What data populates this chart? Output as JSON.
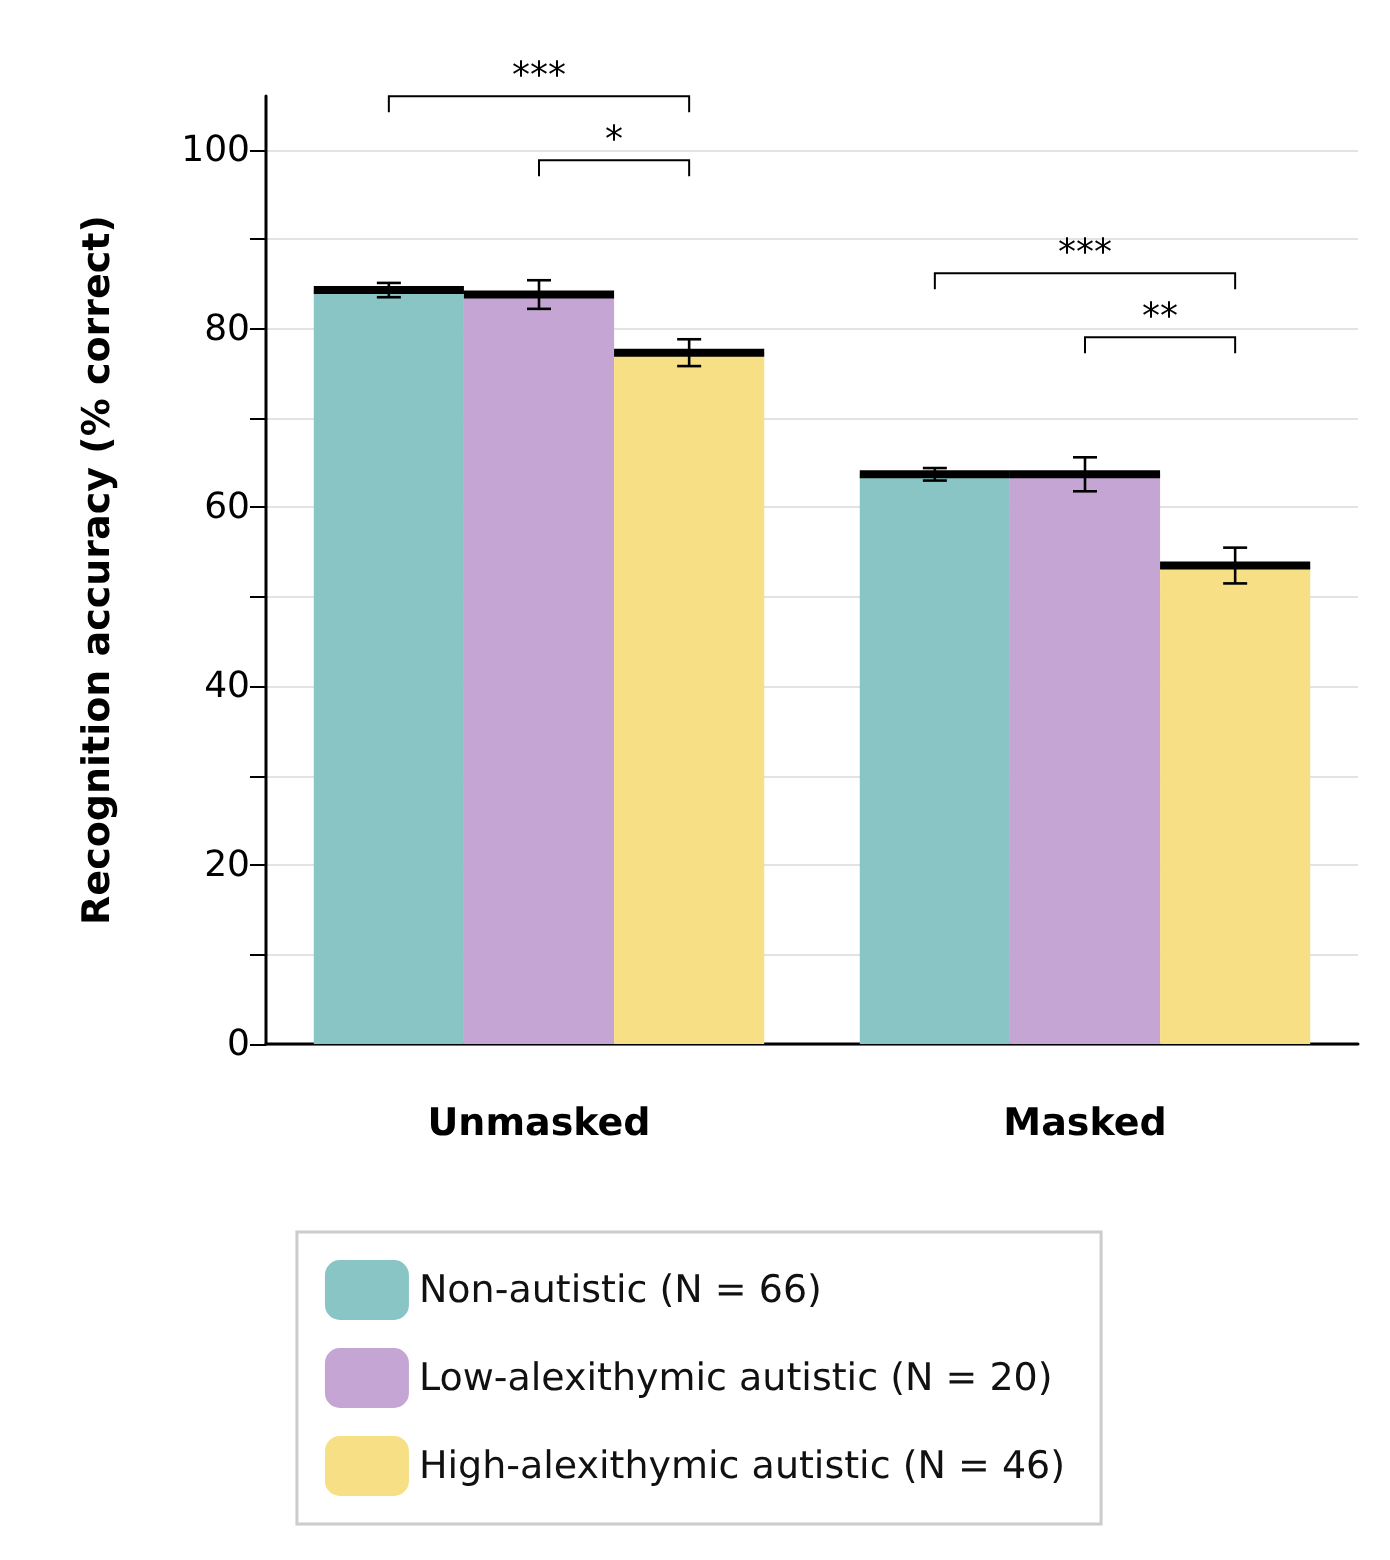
{
  "chart_data": {
    "type": "bar",
    "ylabel": "Recognition accuracy (% correct)",
    "categories": [
      "Unmasked",
      "Masked"
    ],
    "series": [
      {
        "name": "Non-autistic (N = 66)",
        "color": "#88c5c4",
        "values": [
          84.3,
          63.7
        ],
        "errors": [
          0.8,
          0.7
        ]
      },
      {
        "name": "Low-alexithymic autistic (N = 20)",
        "color": "#c4a5d4",
        "values": [
          83.8,
          63.7
        ],
        "errors": [
          1.6,
          1.9
        ]
      },
      {
        "name": "High-alexithymic autistic (N = 46)",
        "color": "#f7df86",
        "values": [
          77.3,
          53.5
        ],
        "errors": [
          1.5,
          2.0
        ]
      }
    ],
    "ylim": [
      0,
      106
    ],
    "yticks": [
      0,
      {
        "value": 10,
        "label": null
      },
      20,
      {
        "value": 30,
        "label": null
      },
      40,
      {
        "value": 50,
        "label": null
      },
      60,
      {
        "value": 70,
        "label": null
      },
      80,
      {
        "value": 90,
        "label": null
      },
      100
    ],
    "grid": "y",
    "legend": "bottom",
    "annotations": [
      "***",
      "*",
      "***",
      "**"
    ]
  }
}
